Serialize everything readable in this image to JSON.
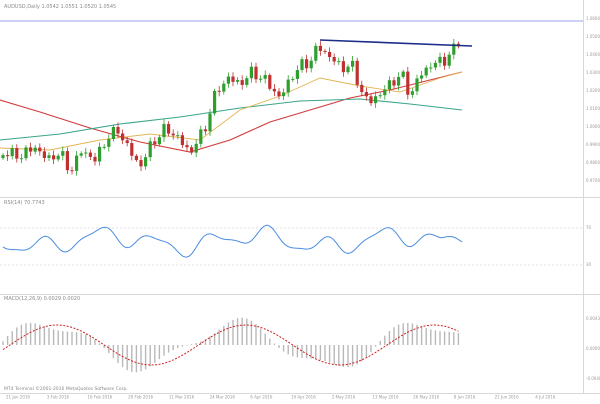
{
  "window": {
    "title": "AUDUSD,Daily  1.0542 1.0551 1.0520 1.0545",
    "footer": "MT4 Terminal  ©2001-2016 MetaQuotes Software Corp."
  },
  "indicators": {
    "rsi_label": "RSI(14) 70.7743",
    "macd_label": "MACD(12,26,9) 0.0029 0.0020"
  },
  "colors": {
    "bull": "#2e9e2e",
    "bear": "#c03030",
    "ma_red": "#d23a3a",
    "ma_teal": "#3aa58a",
    "ma_gold": "#e2b552",
    "trendline": "#1c2d8a",
    "rsi": "#4a8de0",
    "macd_signal": "#d02020",
    "macd_hist": "#b8b8b8",
    "hline": "#9aa0e6",
    "separator": "#d8d8d8"
  },
  "chart_data": {
    "type": "candlestick",
    "price_axis": [
      "1.0600",
      "1.0500",
      "1.0400",
      "1.0300",
      "1.0200",
      "1.0100",
      "1.0000",
      "0.9900",
      "0.9800",
      "0.9700"
    ],
    "date_labels": [
      "21 Jan 2016",
      "3 Feb 2016",
      "16 Feb 2016",
      "29 Feb 2016",
      "11 Mar 2016",
      "24 Mar 2016",
      "6 Apr 2016",
      "19 Apr 2016",
      "2 May 2016",
      "13 May 2016",
      "26 May 2016",
      "8 Jun 2016",
      "21 Jun 2016",
      "4 Jul 2016"
    ],
    "rsi_levels": [
      "70",
      "30"
    ],
    "macd_levels": [
      "0.0043",
      "0.0000",
      "-0.0040"
    ]
  }
}
